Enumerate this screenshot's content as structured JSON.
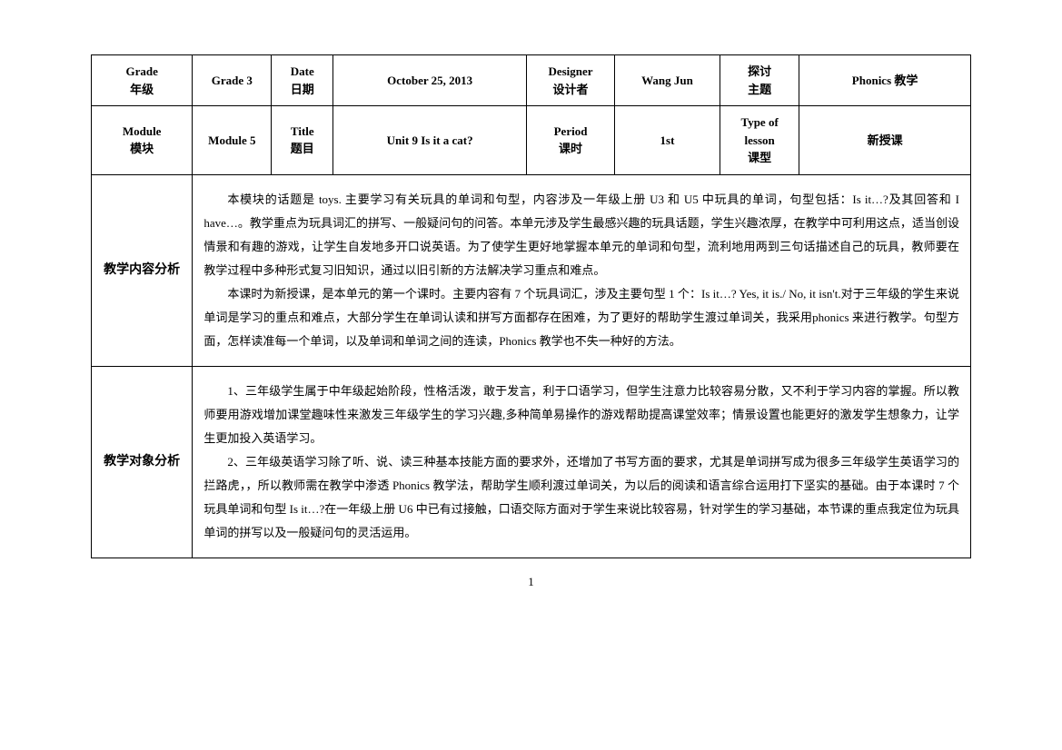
{
  "header_row1": {
    "grade_label_en": "Grade",
    "grade_label_zh": "年级",
    "grade_value": "Grade 3",
    "date_label_en": "Date",
    "date_label_zh": "日期",
    "date_value": "October 25, 2013",
    "designer_label_en": "Designer",
    "designer_label_zh": "设计者",
    "designer_value": "Wang Jun",
    "topic_label_zh1": "探讨",
    "topic_label_zh2": "主题",
    "topic_value": "Phonics 教学"
  },
  "header_row2": {
    "module_label_en": "Module",
    "module_label_zh": "模块",
    "module_value": "Module 5",
    "title_label_en": "Title",
    "title_label_zh": "题目",
    "title_value": "Unit 9 Is it a cat?",
    "period_label_en": "Period",
    "period_label_zh": "课时",
    "period_value": "1st",
    "type_label_en": "Type of",
    "type_label_en2": "lesson",
    "type_label_zh": "课型",
    "type_value": "新授课"
  },
  "section1": {
    "label": "教学内容分析",
    "p1": "本模块的话题是 toys. 主要学习有关玩具的单词和句型，内容涉及一年级上册 U3 和 U5 中玩具的单词，句型包括：Is it…?及其回答和 I have…。教学重点为玩具词汇的拼写、一般疑问句的问答。本单元涉及学生最感兴趣的玩具话题，学生兴趣浓厚，在教学中可利用这点，适当创设情景和有趣的游戏，让学生自发地多开口说英语。为了使学生更好地掌握本单元的单词和句型，流利地用两到三句话描述自己的玩具，教师要在教学过程中多种形式复习旧知识，通过以旧引新的方法解决学习重点和难点。",
    "p2": "本课时为新授课，是本单元的第一个课时。主要内容有 7 个玩具词汇，涉及主要句型 1 个：Is it…? Yes, it is./ No, it isn't.对于三年级的学生来说单词是学习的重点和难点，大部分学生在单词认读和拼写方面都存在困难，为了更好的帮助学生渡过单词关，我采用phonics 来进行教学。句型方面，怎样读准每一个单词，以及单词和单词之间的连读，Phonics 教学也不失一种好的方法。"
  },
  "section2": {
    "label": "教学对象分析",
    "p1": "1、三年级学生属于中年级起始阶段，性格活泼，敢于发言，利于口语学习，但学生注意力比较容易分散，又不利于学习内容的掌握。所以教师要用游戏增加课堂趣味性来激发三年级学生的学习兴趣,多种简单易操作的游戏帮助提高课堂效率；情景设置也能更好的激发学生想象力，让学生更加投入英语学习。",
    "p2": "2、三年级英语学习除了听、说、读三种基本技能方面的要求外，还增加了书写方面的要求，尤其是单词拼写成为很多三年级学生英语学习的拦路虎，，所以教师需在教学中渗透 Phonics 教学法，帮助学生顺利渡过单词关，为以后的阅读和语言综合运用打下坚实的基础。由于本课时 7 个玩具单词和句型 Is it…?在一年级上册 U6 中已有过接触，口语交际方面对于学生来说比较容易，针对学生的学习基础，本节课的重点我定位为玩具单词的拼写以及一般疑问句的灵活运用。"
  },
  "page_number": "1"
}
